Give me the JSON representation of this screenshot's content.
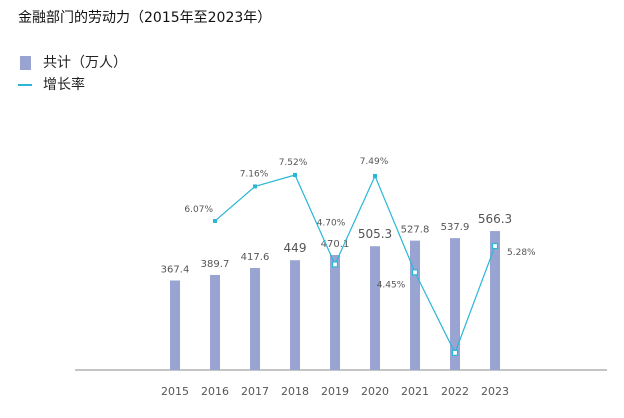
{
  "chart_data": {
    "type": "bar",
    "title": "金融部门的劳动力（2015年至2023年）",
    "xlabel": "",
    "ylabel": "",
    "categories": [
      "2015",
      "2016",
      "2017",
      "2018",
      "2019",
      "2020",
      "2021",
      "2022",
      "2023"
    ],
    "series": [
      {
        "name": "共计（万人）",
        "type": "bar",
        "color": "#9aa4d3",
        "values": [
          367.4,
          389.7,
          417.6,
          449,
          470.1,
          505.3,
          527.8,
          537.9,
          566.3
        ],
        "labels": [
          "367.4",
          "389.7",
          "417.6",
          "449",
          "470.1",
          "505.3",
          "527.8",
          "537.9",
          "566.3"
        ]
      },
      {
        "name": "增长率",
        "type": "line",
        "color": "#2ab7d6",
        "values": [
          null,
          6.07,
          7.16,
          7.52,
          4.7,
          7.49,
          4.45,
          1.91,
          5.28
        ],
        "labels": [
          "",
          "6.07%",
          "7.16%",
          "7.52%",
          "4.70%",
          "7.49%",
          "4.45%",
          "",
          "5.28%"
        ]
      }
    ],
    "grid": false,
    "legend": "top-left"
  }
}
